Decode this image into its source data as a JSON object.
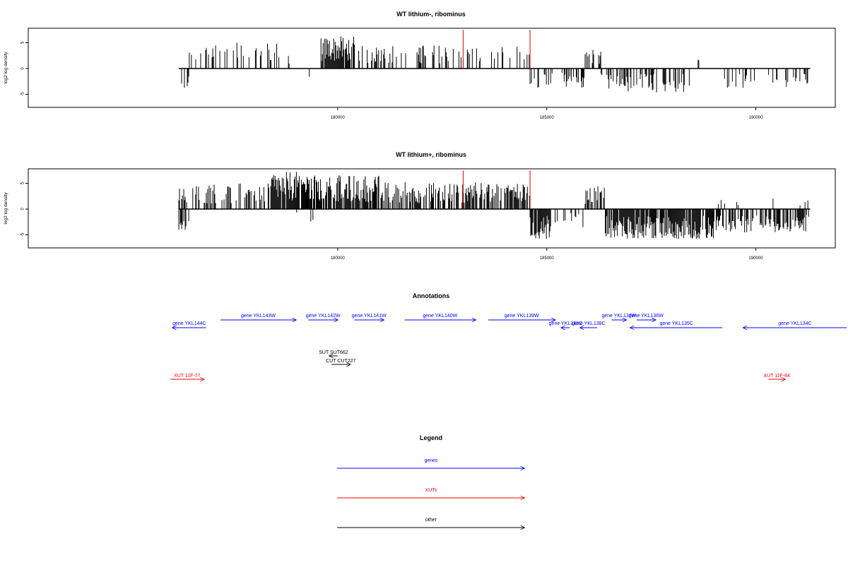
{
  "chart_data": [
    {
      "type": "bar",
      "title": "WT lithium-, ribominus",
      "ylabel": "log2 log density",
      "xlabel": "",
      "xlim": [
        172600,
        191900
      ],
      "ylim": [
        -7.5,
        7.5
      ],
      "yticks": [
        -5,
        0,
        5
      ],
      "xticks": [
        180000,
        185000,
        190000
      ],
      "ytick_labels": [
        "-5",
        "0",
        "5"
      ],
      "xtick_labels": [
        "180000",
        "185000",
        "190000"
      ],
      "baseline": [
        176200,
        191300
      ],
      "highlight_positions": [
        183000,
        184600
      ],
      "highlight_value": 7.5,
      "highlight_color": "#dd0000",
      "segments": [
        {
          "start": 176250,
          "end": 176450,
          "sign": -1,
          "mean": 2.5,
          "density": 0.6
        },
        {
          "start": 176400,
          "end": 178600,
          "sign": 1,
          "mean": 3.2,
          "density": 0.28
        },
        {
          "start": 178600,
          "end": 179000,
          "sign": 1,
          "mean": 1.8,
          "density": 0.15
        },
        {
          "start": 179100,
          "end": 179600,
          "sign": -1,
          "mean": 1.8,
          "density": 0.04
        },
        {
          "start": 179600,
          "end": 180400,
          "sign": 1,
          "mean": 3.8,
          "density": 0.85
        },
        {
          "start": 180400,
          "end": 183100,
          "sign": 1,
          "mean": 2.8,
          "density": 0.3
        },
        {
          "start": 183100,
          "end": 184600,
          "sign": 1,
          "mean": 2.6,
          "density": 0.22
        },
        {
          "start": 184600,
          "end": 185900,
          "sign": -1,
          "mean": 2.4,
          "density": 0.35
        },
        {
          "start": 185900,
          "end": 186300,
          "sign": 1,
          "mean": 2.5,
          "density": 0.35
        },
        {
          "start": 186300,
          "end": 188500,
          "sign": -1,
          "mean": 2.8,
          "density": 0.4
        },
        {
          "start": 188500,
          "end": 189200,
          "sign": 1,
          "mean": 1.5,
          "density": 0.04
        },
        {
          "start": 189200,
          "end": 191300,
          "sign": -1,
          "mean": 2.4,
          "density": 0.22
        }
      ]
    },
    {
      "type": "bar",
      "title": "WT lithium+, ribominus",
      "ylabel": "log2 log density",
      "xlabel": "",
      "xlim": [
        172600,
        191900
      ],
      "ylim": [
        -7.5,
        7.5
      ],
      "yticks": [
        -5,
        0,
        5
      ],
      "xticks": [
        180000,
        185000,
        190000
      ],
      "ytick_labels": [
        "-5",
        "0",
        "5"
      ],
      "xtick_labels": [
        "180000",
        "185000",
        "190000"
      ],
      "baseline": [
        176200,
        191300
      ],
      "highlight_positions": [
        183000,
        184600
      ],
      "highlight_value": 7.5,
      "highlight_color": "#dd0000",
      "segments": [
        {
          "start": 176200,
          "end": 176450,
          "sign": 1,
          "mean": 2.5,
          "density": 0.5
        },
        {
          "start": 176200,
          "end": 176450,
          "sign": -1,
          "mean": 2.6,
          "density": 0.6
        },
        {
          "start": 176500,
          "end": 178400,
          "sign": 1,
          "mean": 3.0,
          "density": 0.35
        },
        {
          "start": 178400,
          "end": 179300,
          "sign": 1,
          "mean": 4.5,
          "density": 0.9
        },
        {
          "start": 179000,
          "end": 179600,
          "sign": -1,
          "mean": 1.8,
          "density": 0.12
        },
        {
          "start": 179300,
          "end": 181000,
          "sign": 1,
          "mean": 4.0,
          "density": 0.85
        },
        {
          "start": 181000,
          "end": 184600,
          "sign": 1,
          "mean": 3.2,
          "density": 0.6
        },
        {
          "start": 184600,
          "end": 185100,
          "sign": -1,
          "mean": 3.5,
          "density": 0.8
        },
        {
          "start": 185100,
          "end": 185900,
          "sign": -1,
          "mean": 2.2,
          "density": 0.3
        },
        {
          "start": 185900,
          "end": 186400,
          "sign": 1,
          "mean": 2.8,
          "density": 0.6
        },
        {
          "start": 186400,
          "end": 189000,
          "sign": -1,
          "mean": 3.5,
          "density": 0.85
        },
        {
          "start": 189000,
          "end": 191300,
          "sign": -1,
          "mean": 2.8,
          "density": 0.6
        },
        {
          "start": 189000,
          "end": 191300,
          "sign": 1,
          "mean": 1.5,
          "density": 0.05
        }
      ]
    }
  ],
  "annotations": {
    "title": "Annotations",
    "xlim": [
      172600,
      191900
    ],
    "colors": {
      "genes": "#0000ff",
      "xuts": "#ff0000",
      "other": "#000000"
    },
    "features": [
      {
        "label": "gene YKL144C",
        "start": 176050,
        "end": 176850,
        "dir": "left",
        "kind": "genes",
        "row": 2
      },
      {
        "label": "gene YKL143W",
        "start": 177200,
        "end": 179000,
        "dir": "right",
        "kind": "genes",
        "row": 1
      },
      {
        "label": "gene YKL142W",
        "start": 179300,
        "end": 180000,
        "dir": "right",
        "kind": "genes",
        "row": 1
      },
      {
        "label": "gene YKL141W",
        "start": 180400,
        "end": 181100,
        "dir": "right",
        "kind": "genes",
        "row": 1
      },
      {
        "label": "gene YKL140W",
        "start": 181600,
        "end": 183300,
        "dir": "right",
        "kind": "genes",
        "row": 1
      },
      {
        "label": "gene YKL139W",
        "start": 183600,
        "end": 185200,
        "dir": "right",
        "kind": "genes",
        "row": 1
      },
      {
        "label": "gene YKL138C",
        "start": 185350,
        "end": 185550,
        "dir": "left",
        "kind": "genes",
        "row": 2
      },
      {
        "label": "gene YKL138C",
        "start": 185800,
        "end": 186200,
        "dir": "left",
        "kind": "genes",
        "row": 2
      },
      {
        "label": "gene YKL137W",
        "start": 186550,
        "end": 186900,
        "dir": "right",
        "kind": "genes",
        "row": 1
      },
      {
        "label": "gene YKL136W",
        "start": 187150,
        "end": 187600,
        "dir": "right",
        "kind": "genes",
        "row": 1
      },
      {
        "label": "gene YKL135C",
        "start": 187000,
        "end": 189200,
        "dir": "left",
        "kind": "genes",
        "row": 2
      },
      {
        "label": "gene YKL134C",
        "start": 189700,
        "end": 192400,
        "dir": "left",
        "kind": "genes",
        "row": 2
      },
      {
        "label": "SUT SUT662",
        "start": 179800,
        "end": 180000,
        "dir": "left",
        "kind": "other",
        "row": 3
      },
      {
        "label": "CUT CUT227",
        "start": 179850,
        "end": 180300,
        "dir": "right",
        "kind": "other",
        "row": 4
      },
      {
        "label": "XUT 11F-77",
        "start": 176000,
        "end": 176800,
        "dir": "right",
        "kind": "xuts",
        "row": 5
      },
      {
        "label": "XUT 11F-84",
        "start": 190300,
        "end": 190700,
        "dir": "right",
        "kind": "xuts",
        "row": 5
      }
    ]
  },
  "legend": {
    "title": "Legend",
    "items": [
      {
        "label": "genes",
        "color": "#0000ff"
      },
      {
        "label": "XUTs",
        "color": "#ff0000"
      },
      {
        "label": "other",
        "color": "#000000"
      }
    ]
  }
}
